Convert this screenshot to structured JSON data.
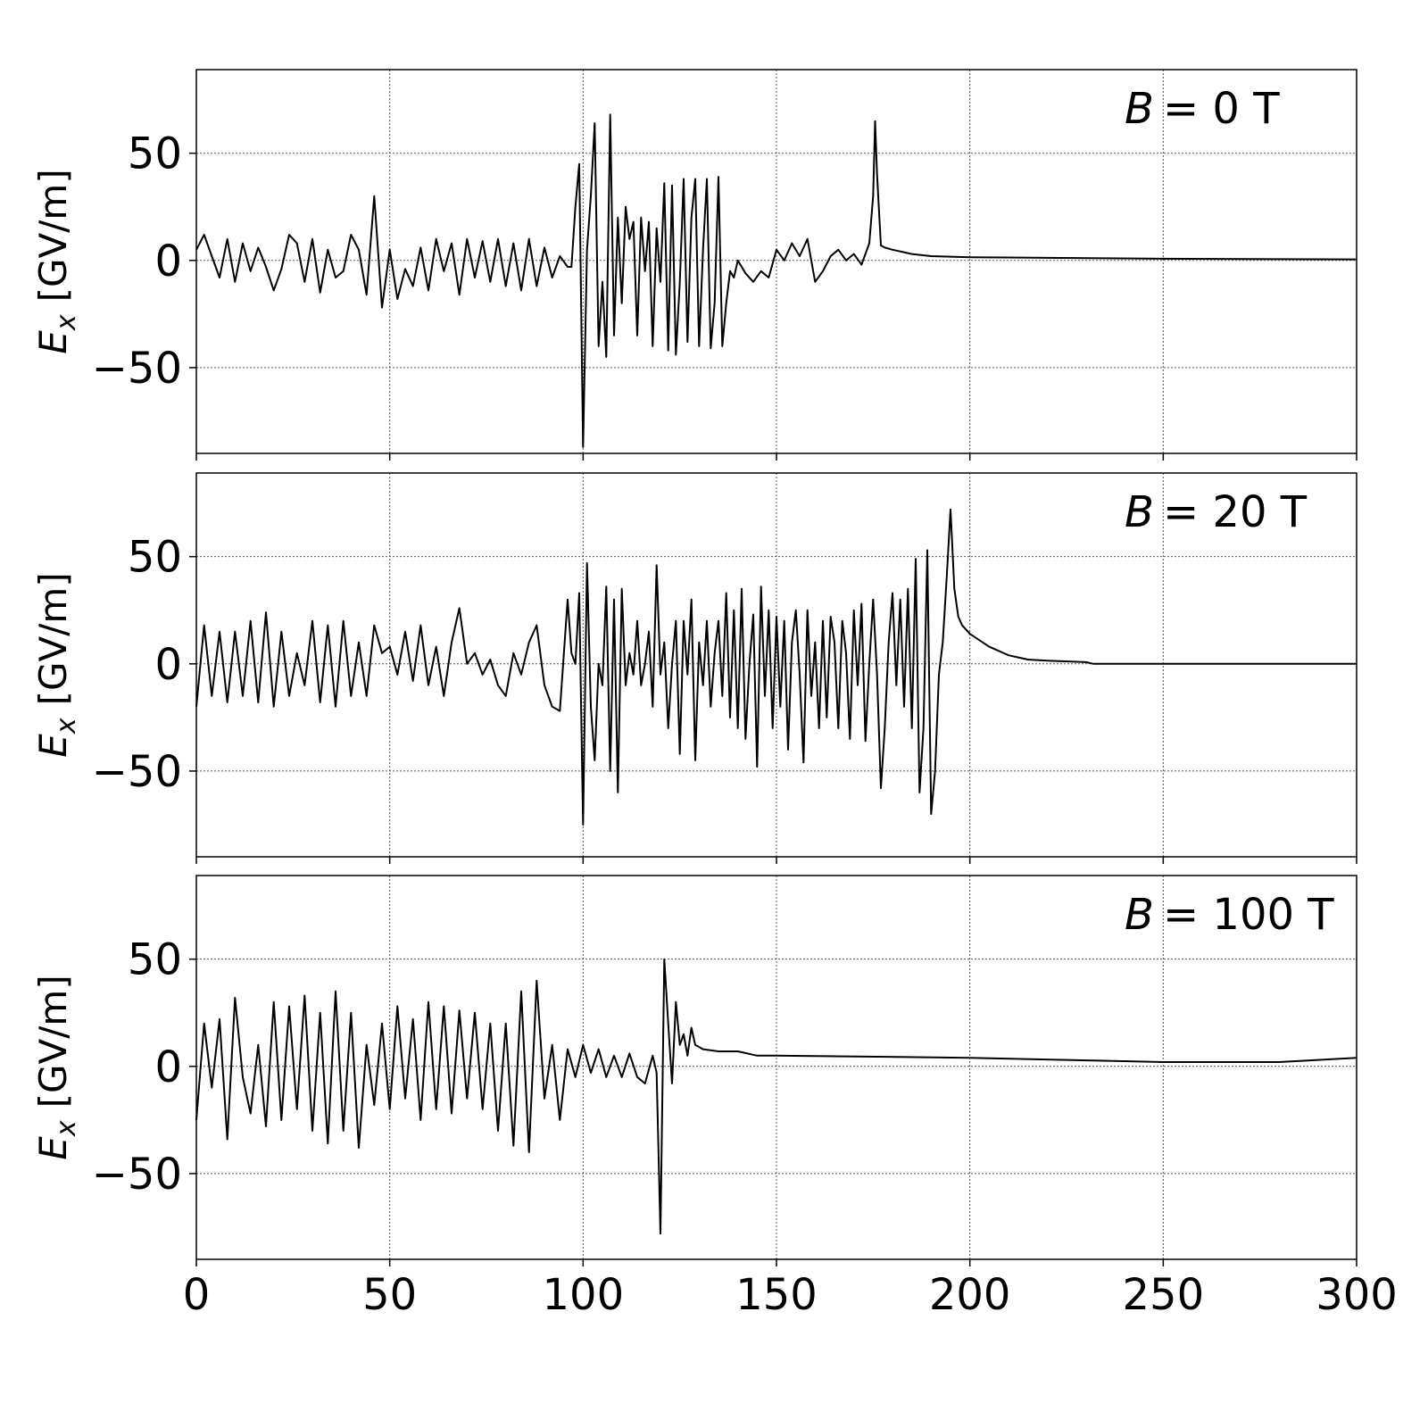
{
  "chart_data": [
    {
      "type": "line",
      "annotation": {
        "symbol": "B",
        "text": "= 0 T"
      },
      "ylabel": {
        "symbol": "E",
        "subscript": "x",
        "unit": "[GV/m]"
      },
      "color": "#000000",
      "grid": true,
      "show_xtick_labels": false,
      "xlim": [
        0,
        300
      ],
      "ylim": [
        -90,
        89
      ],
      "xticks": [
        0,
        50,
        100,
        150,
        200,
        250,
        300
      ],
      "yticks": [
        {
          "value": -50,
          "label": "−50"
        },
        0,
        50
      ],
      "x": [
        0,
        2,
        4,
        6,
        8,
        10,
        12,
        14,
        16,
        18,
        20,
        22,
        24,
        26,
        28,
        30,
        32,
        34,
        36,
        38,
        40,
        42,
        44,
        46,
        48,
        50,
        52,
        54,
        56,
        58,
        60,
        62,
        64,
        66,
        68,
        70,
        72,
        74,
        76,
        78,
        80,
        82,
        84,
        86,
        88,
        90,
        92,
        94,
        96,
        97,
        98,
        99,
        100,
        101,
        102,
        103,
        104,
        105,
        106,
        107,
        108,
        109,
        110,
        111,
        112,
        113,
        114,
        115,
        116,
        117,
        118,
        119,
        120,
        121,
        122,
        123,
        124,
        125,
        126,
        127,
        128,
        129,
        130,
        131,
        132,
        133,
        134,
        135,
        136,
        137,
        138,
        139,
        140,
        142,
        144,
        146,
        148,
        150,
        152,
        154,
        156,
        158,
        160,
        162,
        164,
        166,
        168,
        170,
        172,
        174,
        175,
        175.5,
        176,
        177,
        178,
        180,
        185,
        190,
        200,
        220,
        250,
        300
      ],
      "values": [
        5,
        12,
        2,
        -8,
        10,
        -10,
        8,
        -5,
        6,
        -3,
        -14,
        -4,
        12,
        8,
        -10,
        10,
        -15,
        5,
        -8,
        -5,
        12,
        5,
        -16,
        30,
        -22,
        5,
        -18,
        -4,
        -12,
        6,
        -14,
        10,
        -5,
        8,
        -16,
        10,
        -8,
        9,
        -10,
        10,
        -12,
        8,
        -14,
        10,
        -12,
        6,
        -8,
        2,
        -3,
        -3,
        25,
        45,
        -87,
        5,
        30,
        64,
        -40,
        -10,
        -45,
        68,
        -35,
        20,
        -20,
        25,
        10,
        18,
        -35,
        20,
        -5,
        18,
        -40,
        15,
        -10,
        36,
        -42,
        35,
        -44,
        -10,
        38,
        -38,
        20,
        38,
        -40,
        5,
        38,
        -41,
        -20,
        39,
        -40,
        -20,
        -5,
        -8,
        0,
        -6,
        -10,
        -5,
        -8,
        5,
        0,
        8,
        2,
        10,
        -10,
        -5,
        2,
        5,
        0,
        3,
        -2,
        8,
        30,
        65,
        40,
        7,
        6,
        5,
        3,
        2,
        1.5,
        1.2,
        0.8,
        0.5
      ]
    },
    {
      "type": "line",
      "annotation": {
        "symbol": "B",
        "text": "= 20 T"
      },
      "ylabel": {
        "symbol": "E",
        "subscript": "x",
        "unit": "[GV/m]"
      },
      "color": "#000000",
      "grid": true,
      "show_xtick_labels": false,
      "xlim": [
        0,
        300
      ],
      "ylim": [
        -90,
        89
      ],
      "xticks": [
        0,
        50,
        100,
        150,
        200,
        250,
        300
      ],
      "yticks": [
        {
          "value": -50,
          "label": "−50"
        },
        0,
        50
      ],
      "x": [
        0,
        2,
        4,
        6,
        8,
        10,
        12,
        14,
        16,
        18,
        20,
        22,
        24,
        26,
        28,
        30,
        32,
        34,
        36,
        38,
        40,
        42,
        44,
        46,
        48,
        50,
        52,
        54,
        56,
        58,
        60,
        62,
        64,
        66,
        68,
        70,
        72,
        74,
        76,
        78,
        80,
        82,
        84,
        86,
        88,
        90,
        92,
        94,
        96,
        97,
        98,
        99,
        100,
        101,
        102,
        103,
        104,
        105,
        106,
        107,
        108,
        109,
        110,
        111,
        112,
        113,
        114,
        115,
        116,
        117,
        118,
        119,
        120,
        121,
        122,
        123,
        124,
        125,
        126,
        127,
        128,
        129,
        130,
        131,
        132,
        133,
        134,
        135,
        136,
        137,
        138,
        139,
        140,
        141,
        142,
        143,
        144,
        145,
        146,
        147,
        148,
        149,
        150,
        151,
        152,
        153,
        154,
        155,
        156,
        157,
        158,
        159,
        160,
        161,
        162,
        163,
        164,
        165,
        166,
        167,
        168,
        169,
        170,
        171,
        172,
        173,
        174,
        175,
        176,
        177,
        178,
        179,
        180,
        181,
        182,
        183,
        184,
        185,
        186,
        187,
        188,
        189,
        190,
        191,
        192,
        193,
        194,
        195,
        196,
        197,
        198,
        200,
        205,
        210,
        215,
        220,
        230,
        232,
        250,
        300
      ],
      "values": [
        -20,
        18,
        -15,
        15,
        -18,
        15,
        -15,
        20,
        -18,
        24,
        -20,
        15,
        -15,
        5,
        -10,
        20,
        -18,
        18,
        -20,
        20,
        -15,
        10,
        -15,
        18,
        5,
        8,
        -5,
        15,
        -8,
        18,
        -10,
        8,
        -15,
        10,
        26,
        0,
        5,
        -5,
        2,
        -10,
        -15,
        5,
        -5,
        10,
        18,
        -10,
        -20,
        -22,
        30,
        5,
        0,
        33,
        -75,
        47,
        -20,
        -45,
        0,
        -10,
        36,
        -50,
        30,
        -60,
        35,
        -10,
        5,
        -5,
        20,
        -10,
        0,
        15,
        -20,
        46,
        -5,
        10,
        -30,
        0,
        20,
        -42,
        20,
        -5,
        30,
        -45,
        10,
        -10,
        20,
        -20,
        5,
        20,
        -15,
        33,
        -25,
        25,
        -30,
        35,
        -35,
        0,
        23,
        -48,
        36,
        -15,
        25,
        -30,
        22,
        -20,
        20,
        -40,
        10,
        25,
        -5,
        -46,
        25,
        -15,
        10,
        -30,
        20,
        -25,
        22,
        10,
        -30,
        20,
        5,
        -35,
        25,
        -10,
        28,
        -36,
        0,
        30,
        -5,
        -58,
        -30,
        10,
        33,
        -10,
        30,
        -20,
        35,
        -30,
        49,
        -60,
        -30,
        53,
        -70,
        -50,
        -5,
        10,
        40,
        72,
        35,
        22,
        18,
        14,
        8,
        4,
        2,
        1.5,
        0.8,
        0,
        0,
        0
      ]
    },
    {
      "type": "line",
      "annotation": {
        "symbol": "B",
        "text": "= 100 T"
      },
      "ylabel": {
        "symbol": "E",
        "subscript": "x",
        "unit": "[GV/m]"
      },
      "color": "#000000",
      "grid": true,
      "show_xtick_labels": true,
      "xlim": [
        0,
        300
      ],
      "ylim": [
        -90,
        89
      ],
      "xticks": [
        0,
        50,
        100,
        150,
        200,
        250,
        300
      ],
      "yticks": [
        {
          "value": -50,
          "label": "−50"
        },
        0,
        50
      ],
      "x": [
        0,
        2,
        4,
        6,
        8,
        10,
        12,
        14,
        16,
        18,
        20,
        22,
        24,
        26,
        28,
        30,
        32,
        34,
        36,
        38,
        40,
        42,
        44,
        46,
        48,
        50,
        52,
        54,
        56,
        58,
        60,
        62,
        64,
        66,
        68,
        70,
        72,
        74,
        76,
        78,
        80,
        82,
        84,
        86,
        88,
        90,
        92,
        94,
        96,
        98,
        100,
        102,
        104,
        106,
        108,
        110,
        112,
        114,
        116,
        118,
        119,
        120,
        121,
        122,
        123,
        124,
        125,
        126,
        127,
        128,
        129,
        131,
        135,
        140,
        145,
        150,
        200,
        250,
        280,
        300
      ],
      "values": [
        -25,
        20,
        -10,
        22,
        -34,
        32,
        -5,
        -22,
        10,
        -28,
        30,
        -25,
        28,
        -20,
        33,
        -30,
        25,
        -36,
        35,
        -30,
        25,
        -38,
        10,
        -18,
        20,
        -20,
        28,
        -15,
        22,
        -25,
        30,
        -20,
        28,
        -22,
        26,
        -15,
        25,
        -20,
        20,
        -30,
        20,
        -37,
        35,
        -40,
        40,
        -15,
        10,
        -25,
        8,
        -5,
        10,
        -3,
        8,
        -5,
        5,
        -5,
        6,
        -5,
        -8,
        5,
        -3,
        -78,
        50,
        20,
        -8,
        30,
        10,
        15,
        5,
        18,
        10,
        8,
        7,
        7,
        5,
        5,
        4,
        2,
        2,
        4
      ]
    }
  ]
}
